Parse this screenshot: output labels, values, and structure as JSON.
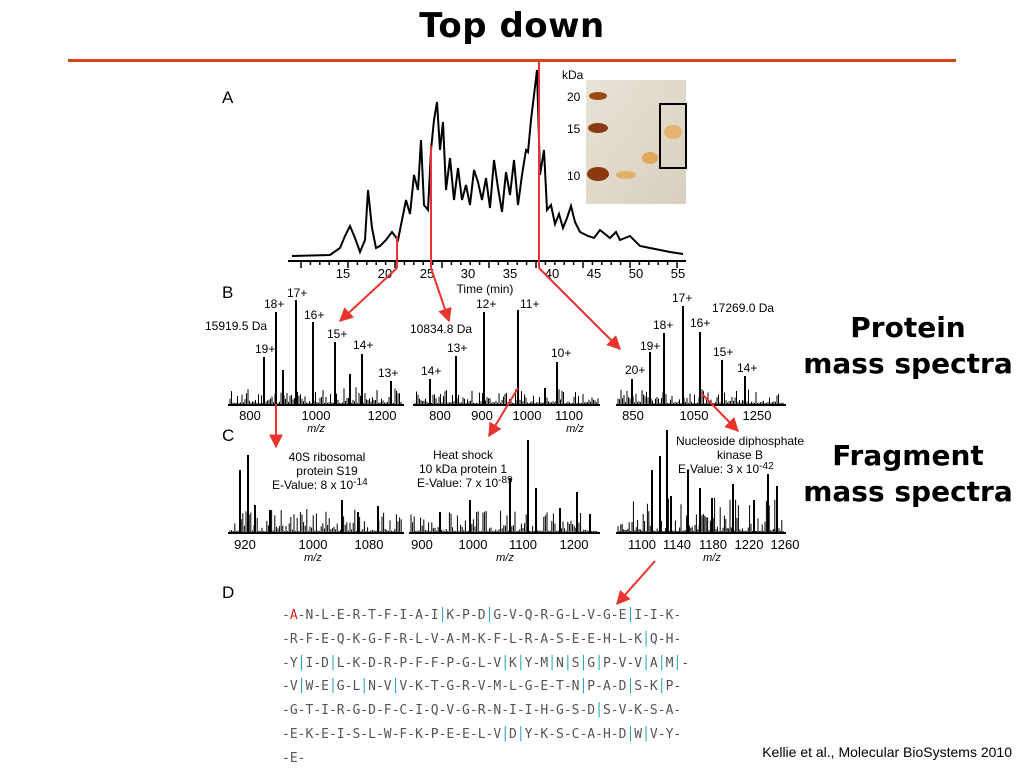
{
  "slide": {
    "title": "Top down",
    "protein_label": [
      "Protein",
      "mass spectra"
    ],
    "fragment_label": [
      "Fragment",
      "mass spectra"
    ],
    "citation": "Kellie et al., Molecular BioSystems 2010"
  },
  "figure": {
    "panel_letters": [
      "A",
      "B",
      "C",
      "D"
    ],
    "gel": {
      "unit": "kDa",
      "marker_labels": [
        "20",
        "15",
        "10"
      ]
    },
    "chromatogram": {
      "xlabel": "Time (min)",
      "x_ticks": [
        "15",
        "20",
        "25",
        "30",
        "35",
        "40",
        "45",
        "50",
        "55"
      ]
    },
    "protein_spectra": [
      {
        "mass": "15919.5 Da",
        "charges": [
          "19+",
          "18+",
          "17+",
          "16+",
          "15+",
          "14+",
          "13+"
        ],
        "x_ticks": [
          "800",
          "1000",
          "1200"
        ],
        "xlabel": "m/z"
      },
      {
        "mass": "10834.8 Da",
        "charges": [
          "14+",
          "13+",
          "12+",
          "11+",
          "10+"
        ],
        "x_ticks": [
          "800",
          "900",
          "1000",
          "1100"
        ],
        "xlabel": "m/z"
      },
      {
        "mass": "17269.0 Da",
        "charges": [
          "20+",
          "19+",
          "18+",
          "17+",
          "16+",
          "15+",
          "14+"
        ],
        "x_ticks": [
          "850",
          "1050",
          "1250"
        ],
        "xlabel": ""
      }
    ],
    "fragment_spectra": [
      {
        "annotation": [
          "40S ribosomal",
          "protein S19",
          "E-Value: 8 x 10",
          "-14"
        ],
        "x_ticks": [
          "920",
          "1000",
          "1080"
        ],
        "xlabel": "m/z"
      },
      {
        "annotation": [
          "Heat shock",
          "10 kDa protein 1",
          "E-Value: 7 x 10",
          "-89"
        ],
        "x_ticks": [
          "900",
          "1000",
          "1100",
          "1200"
        ],
        "xlabel": "m/z"
      },
      {
        "annotation": [
          "Nucleoside diphosphate",
          "kinase B",
          "E-Value: 3 x 10",
          "-42"
        ],
        "x_ticks": [
          "1100",
          "1140",
          "1180",
          "1220",
          "1260"
        ],
        "xlabel": "m/z"
      }
    ],
    "sequence_lines": [
      "A-N-L-E-R-T-F-I-A-IʾK-P-DʾG-V-Q-R-G-L-V-G-EʾI-I-K",
      "R-F-E-Q-K-G-F-R-L-V-A-M-K-F-L-R-A-S-E-E-H-L-KʾQ-H",
      "YʾI-DʾL-K-D-R-P-F-F-P-G-L-VʾKʾY-MʾNʾSʾGʾP-V-VʾAʾMʾ",
      "VʾW-EʾG-LʾN-VʾV-K-T-G-R-V-M-L-G-E-T-NʾP-A-DʾS-KʾP",
      "G-T-I-R-G-D-F-C-I-Q-V-G-R-N-I-I-H-G-S-DʾS-V-K-S-A",
      "E-K-E-I-S-L-W-F-K-P-E-E-L-VʾDʾY-K-S-C-A-H-DʾWʾV-Y",
      "E"
    ],
    "colors": {
      "accent": "#d2461e",
      "arrow": "#e8332e",
      "cleavage": "#1ba2c8"
    }
  }
}
